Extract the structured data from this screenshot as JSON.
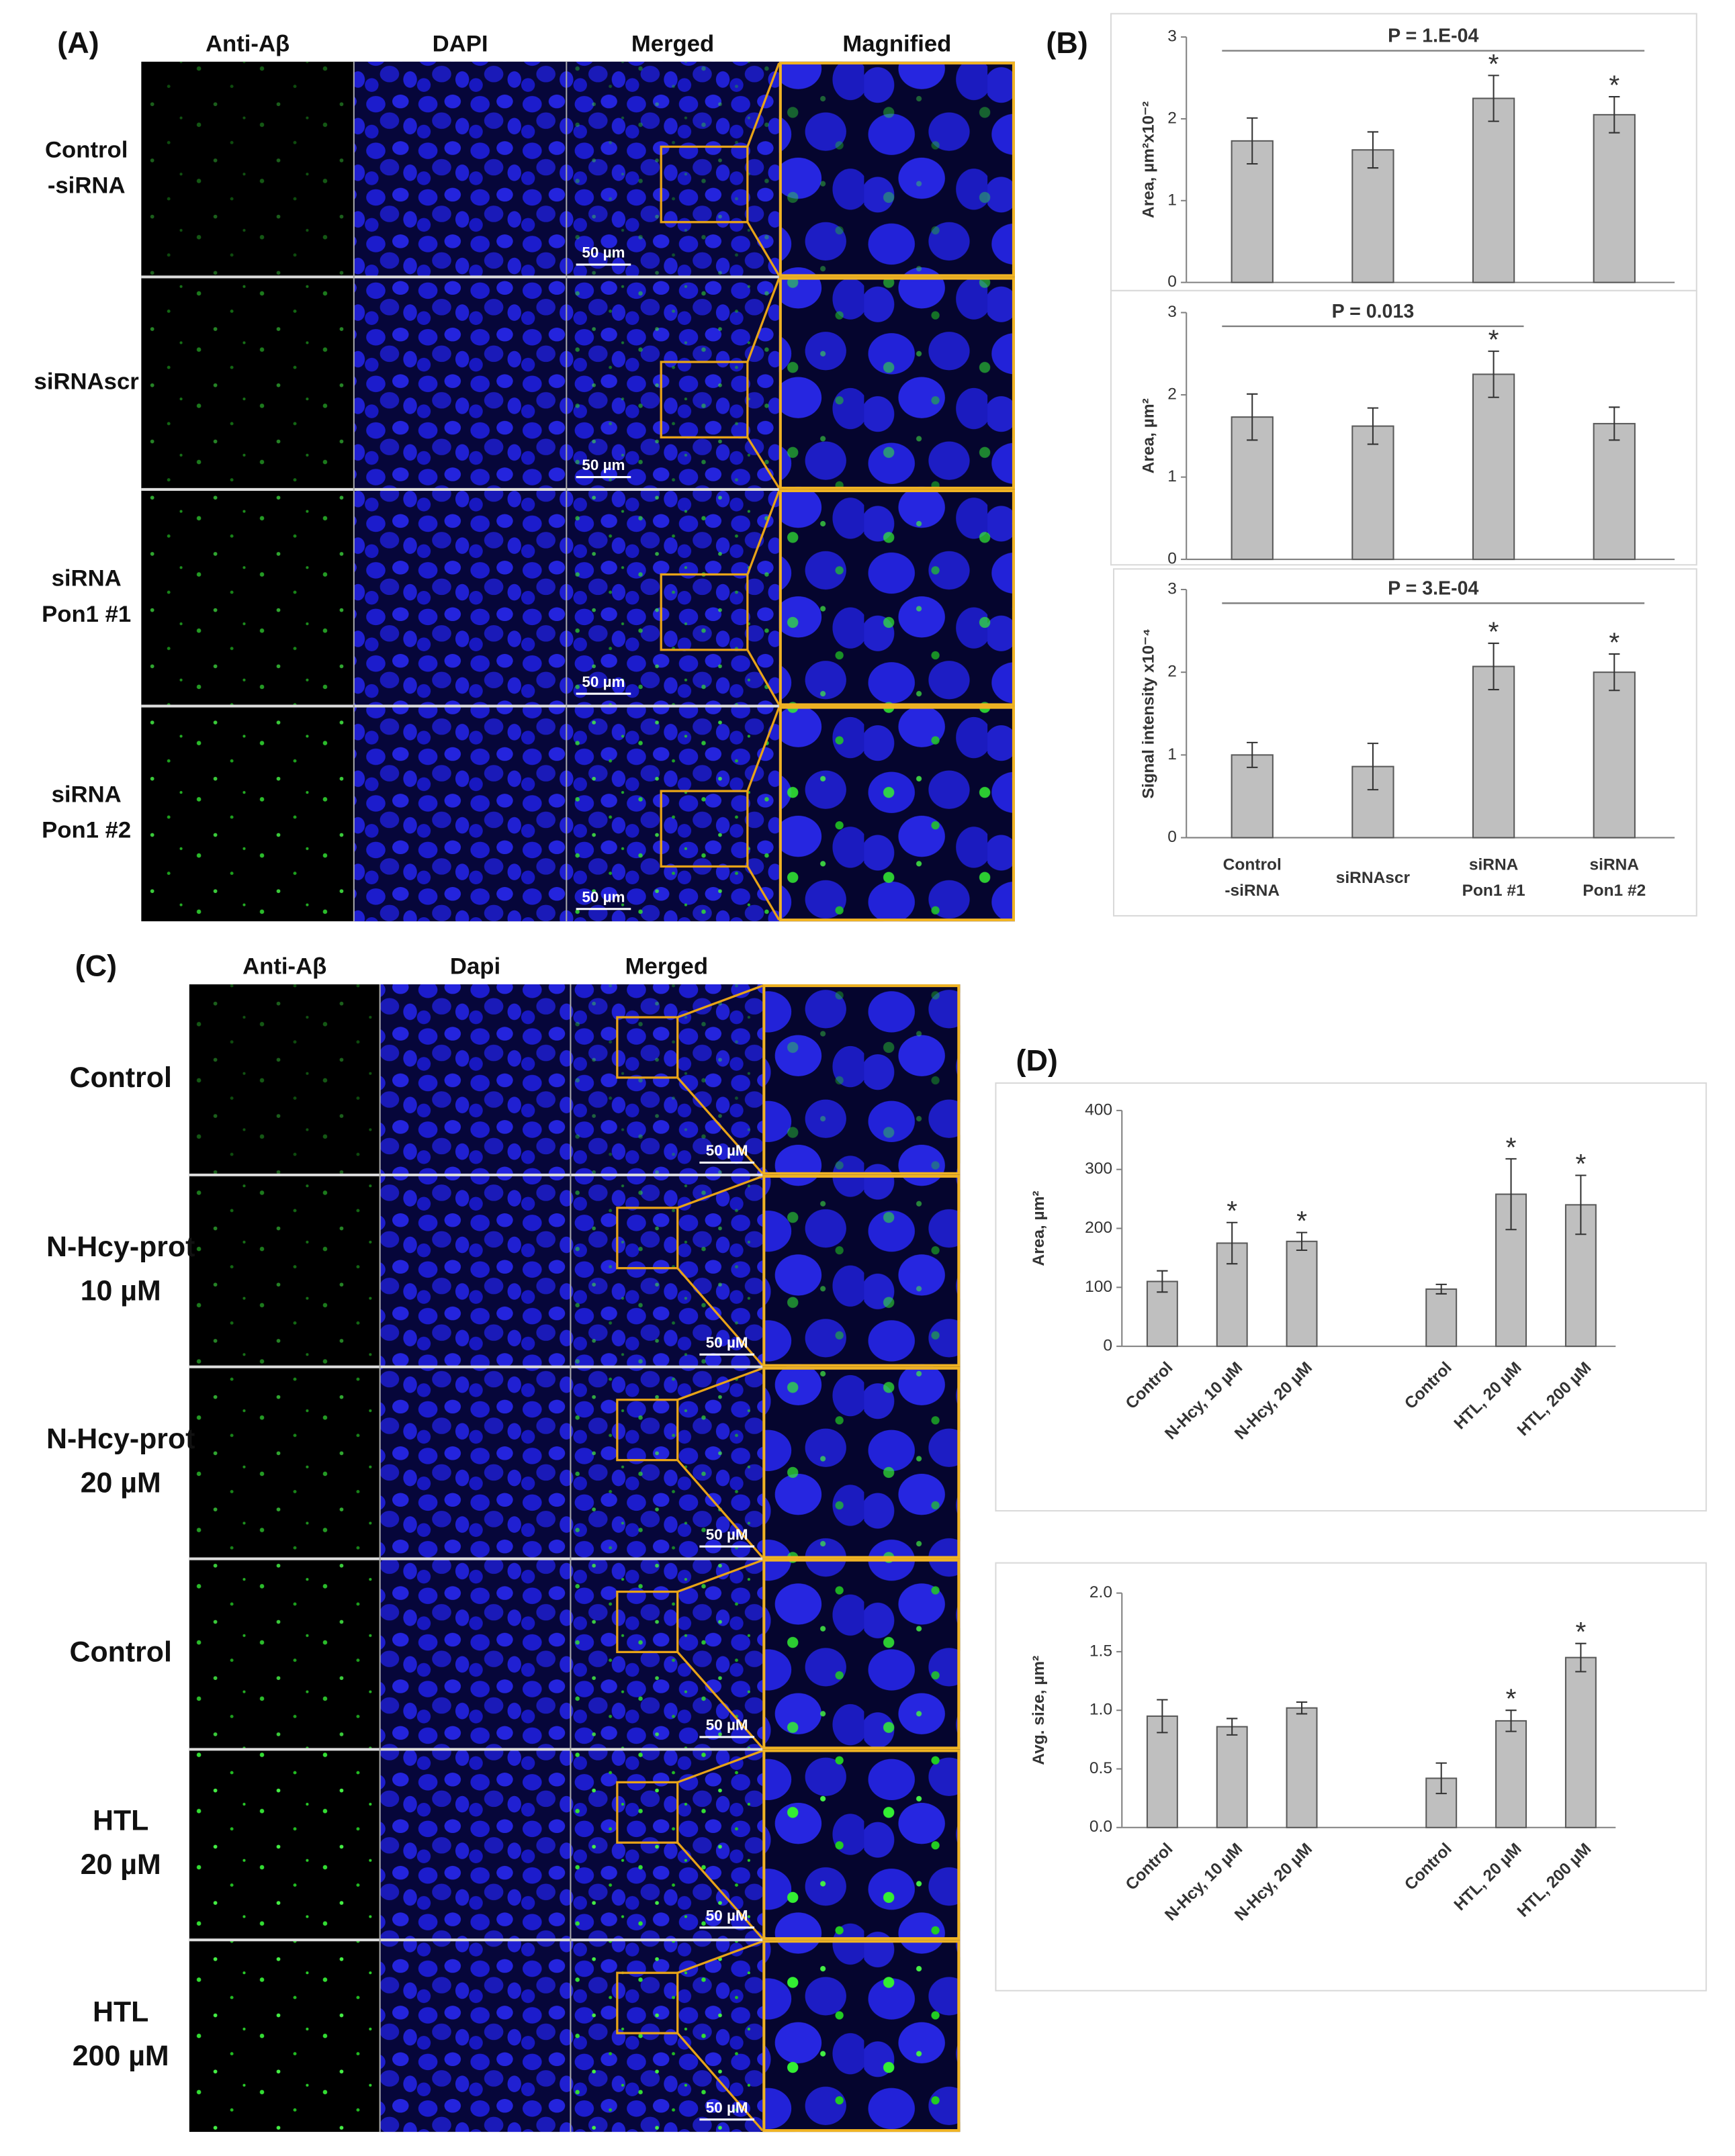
{
  "panel_a": {
    "label": "(A)",
    "columns": [
      "Anti-Aβ",
      "DAPI",
      "Merged",
      "Magnified"
    ],
    "rows": [
      [
        "Control",
        "-siRNA"
      ],
      [
        "siRNAscr"
      ],
      [
        "siRNA",
        "Pon1 #1"
      ],
      [
        "siRNA",
        "Pon1 #2"
      ]
    ],
    "scale_bar": "50 µm"
  },
  "panel_b": {
    "label": "(B)"
  },
  "panel_c": {
    "label": "(C)",
    "columns": [
      "Anti-Aβ",
      "Dapi",
      "Merged"
    ],
    "rows": [
      [
        "Control"
      ],
      [
        "N-Hcy-prot",
        "10 µM"
      ],
      [
        "N-Hcy-prot",
        "20 µM"
      ],
      [
        "Control"
      ],
      [
        "HTL",
        "20 µM"
      ],
      [
        "HTL",
        "200 µM"
      ]
    ],
    "scale_bar": "50 µM"
  },
  "panel_d": {
    "label": "(D)"
  },
  "chart_data": [
    {
      "type": "bar",
      "ylabel": "Area, µm²x10⁻²",
      "ylim": [
        0,
        3
      ],
      "yticks": [
        0,
        1,
        2,
        3
      ],
      "values": [
        1.73,
        1.62,
        2.25,
        2.05
      ],
      "errors": [
        0.28,
        0.22,
        0.28,
        0.22
      ],
      "markers": [
        null,
        null,
        "*",
        "*"
      ],
      "annotation": "P = 1.E-04",
      "color": "#bfbfbf"
    },
    {
      "type": "bar",
      "ylabel": "Area, µm²",
      "ylim": [
        0,
        3
      ],
      "yticks": [
        0,
        1,
        2,
        3
      ],
      "values": [
        1.73,
        1.62,
        2.25,
        1.65
      ],
      "errors": [
        0.28,
        0.22,
        0.28,
        0.2
      ],
      "markers": [
        null,
        null,
        "*",
        null
      ],
      "annotation": "P = 0.013",
      "color": "#bfbfbf"
    },
    {
      "type": "bar",
      "ylabel": "Signal intensity x10⁻⁴",
      "ylim": [
        0,
        3
      ],
      "yticks": [
        0,
        1,
        2,
        3
      ],
      "categories": [
        [
          "Control",
          "-siRNA"
        ],
        [
          "siRNAscr"
        ],
        [
          "siRNA",
          "Pon1 #1"
        ],
        [
          "siRNA",
          "Pon1 #2"
        ]
      ],
      "values": [
        1.0,
        0.86,
        2.07,
        2.0
      ],
      "errors": [
        0.15,
        0.28,
        0.28,
        0.22
      ],
      "markers": [
        null,
        null,
        "*",
        "*"
      ],
      "annotation": "P = 3.E-04",
      "color": "#bfbfbf"
    },
    {
      "type": "bar",
      "ylabel": "Area, µm²",
      "ylim": [
        0,
        400
      ],
      "yticks": [
        0,
        100,
        200,
        300,
        400
      ],
      "categories": [
        "Control",
        "N-Hcy, 10 µM",
        "N-Hcy, 20 µM",
        null,
        "Control",
        "HTL, 20 µM",
        "HTL, 200 µM"
      ],
      "values": [
        110,
        175,
        178,
        null,
        97,
        258,
        240
      ],
      "errors": [
        18,
        35,
        15,
        null,
        8,
        60,
        50
      ],
      "markers": [
        null,
        "*",
        "*",
        null,
        null,
        "*",
        "*"
      ],
      "color": "#bfbfbf"
    },
    {
      "type": "bar",
      "ylabel": "Avg. size, µm²",
      "ylim": [
        0,
        2
      ],
      "yticks": [
        {
          "value": 0,
          "label": "0.0"
        },
        0.5,
        {
          "value": 1,
          "label": "1.0"
        },
        1.5,
        {
          "value": 2,
          "label": "2.0"
        }
      ],
      "categories": [
        "Control",
        "N-Hcy, 10 µM",
        "N-Hcy, 20 µM",
        null,
        "Control",
        "HTL, 20 µM",
        "HTL, 200 µM"
      ],
      "values": [
        0.95,
        0.86,
        1.02,
        null,
        0.42,
        0.91,
        1.45
      ],
      "errors": [
        0.14,
        0.07,
        0.05,
        null,
        0.13,
        0.09,
        0.12
      ],
      "markers": [
        null,
        null,
        null,
        null,
        null,
        "*",
        "*"
      ],
      "color": "#bfbfbf"
    }
  ]
}
